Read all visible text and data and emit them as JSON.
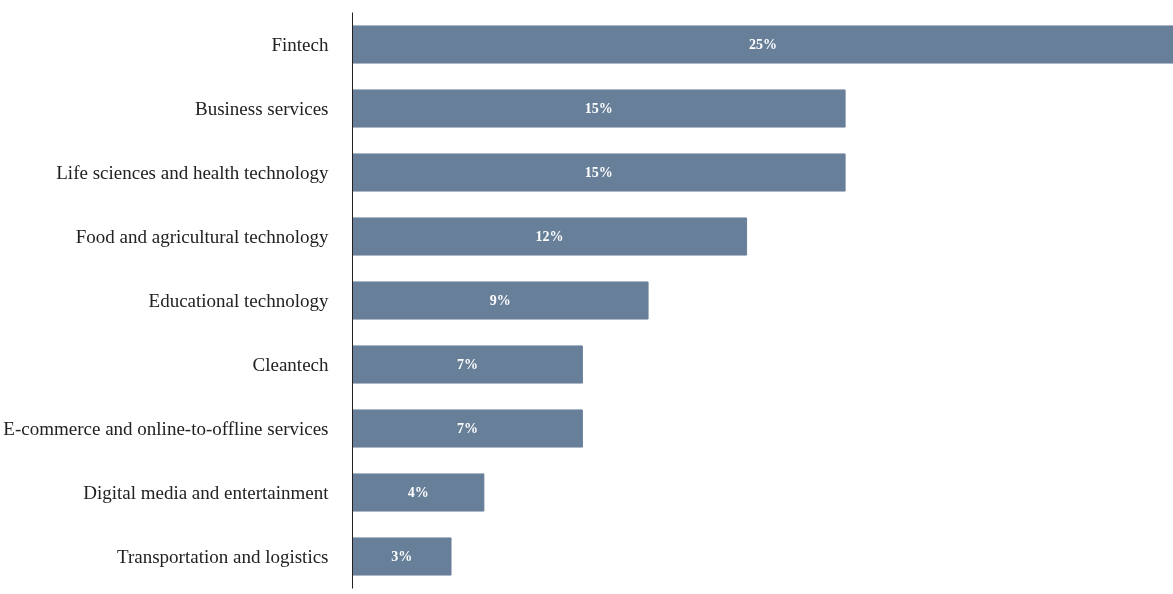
{
  "chart_data": {
    "type": "bar",
    "orientation": "horizontal",
    "categories": [
      "Fintech",
      "Business services",
      "Life sciences and health technology",
      "Food and agricultural technology",
      "Educational technology",
      "Cleantech",
      "E-commerce and online-to-offline services",
      "Digital media and entertainment",
      "Transportation and logistics"
    ],
    "values": [
      25,
      15,
      15,
      12,
      9,
      7,
      7,
      4,
      3
    ],
    "value_labels": [
      "25%",
      "15%",
      "15%",
      "12%",
      "9%",
      "7%",
      "7%",
      "4%",
      "3%"
    ],
    "color": "#687f99"
  }
}
